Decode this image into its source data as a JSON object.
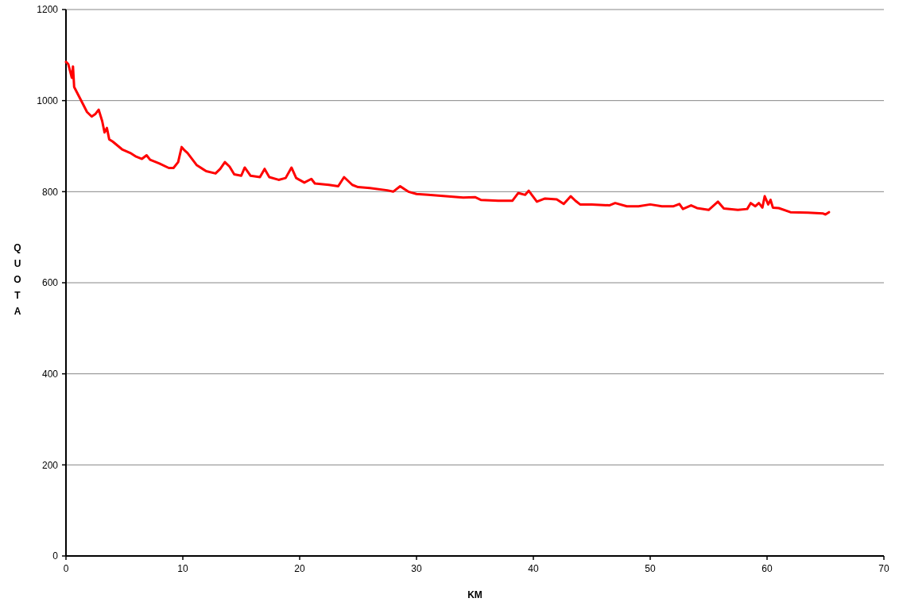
{
  "chart_data": {
    "type": "line",
    "xlabel": "KM",
    "ylabel": "QUOTA",
    "xlim": [
      0,
      70
    ],
    "xticks": [
      0,
      10,
      20,
      30,
      40,
      50,
      60,
      70
    ],
    "ylim": [
      0,
      1200
    ],
    "yticks": [
      0,
      200,
      400,
      600,
      800,
      1000,
      1200
    ],
    "grid": "y",
    "marker": "none",
    "line_style": "solid",
    "series": [
      {
        "color": "#ff0000",
        "x": [
          0,
          0.2,
          0.5,
          0.6,
          0.7,
          1.2,
          1.8,
          2.2,
          2.5,
          2.8,
          3.1,
          3.3,
          3.5,
          3.7,
          4.0,
          4.8,
          5.5,
          6.0,
          6.5,
          6.9,
          7.2,
          8.0,
          8.8,
          9.2,
          9.6,
          9.9,
          10.1,
          10.4,
          11.2,
          12.0,
          12.8,
          13.2,
          13.6,
          14.0,
          14.4,
          15.0,
          15.3,
          15.8,
          16.6,
          17.0,
          17.4,
          18.2,
          18.8,
          19.3,
          19.7,
          20.4,
          21.0,
          21.3,
          22.5,
          23.3,
          23.8,
          24.5,
          25.0,
          26.0,
          27.5,
          28.0,
          28.6,
          29.3,
          30.0,
          31.0,
          32.5,
          34.0,
          35.0,
          35.5,
          37.0,
          38.2,
          38.7,
          39.3,
          39.6,
          40.3,
          41.0,
          42.0,
          42.6,
          43.2,
          43.6,
          44.0,
          45.0,
          46.5,
          47.0,
          48.0,
          49.0,
          50.0,
          51.0,
          52.0,
          52.5,
          52.8,
          53.5,
          54.0,
          55.0,
          55.8,
          56.3,
          57.5,
          58.3,
          58.6,
          59.0,
          59.3,
          59.6,
          59.8,
          60.1,
          60.3,
          60.5,
          61.0,
          62.0,
          63.5,
          64.8,
          65.0,
          65.3
        ],
        "values": [
          1085,
          1080,
          1050,
          1075,
          1030,
          1005,
          975,
          965,
          970,
          980,
          955,
          930,
          940,
          915,
          910,
          893,
          885,
          877,
          872,
          880,
          870,
          862,
          852,
          852,
          865,
          898,
          892,
          885,
          858,
          845,
          840,
          850,
          865,
          855,
          838,
          835,
          853,
          835,
          832,
          850,
          832,
          826,
          830,
          853,
          830,
          820,
          828,
          818,
          815,
          812,
          832,
          815,
          810,
          808,
          803,
          800,
          812,
          800,
          795,
          793,
          790,
          787,
          788,
          782,
          780,
          780,
          797,
          793,
          802,
          778,
          785,
          783,
          773,
          790,
          780,
          772,
          772,
          770,
          775,
          768,
          768,
          772,
          768,
          768,
          773,
          762,
          770,
          764,
          760,
          778,
          763,
          760,
          762,
          775,
          768,
          775,
          765,
          790,
          772,
          782,
          765,
          764,
          755,
          754,
          752,
          750,
          755
        ]
      }
    ]
  }
}
